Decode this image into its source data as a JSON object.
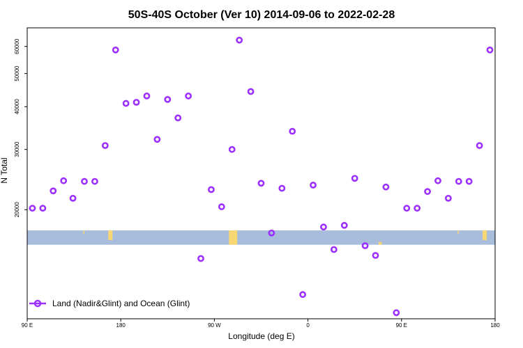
{
  "chart_data": {
    "type": "scatter",
    "title": "50S-40S October (Ver 10)   2014-09-06 to 2022-02-28",
    "xlabel": "Longitude (deg E)",
    "ylabel": "N Total",
    "x_ticks": [
      {
        "value": 90,
        "label": "90 E"
      },
      {
        "value": 180,
        "label": "180"
      },
      {
        "value": 270,
        "label": "90 W"
      },
      {
        "value": 360,
        "label": "0"
      },
      {
        "value": 450,
        "label": "90 E"
      },
      {
        "value": 540,
        "label": "180"
      }
    ],
    "y_ticks": [
      20000,
      30000,
      40000,
      50000,
      60000
    ],
    "xlim": [
      90,
      540
    ],
    "y_scale": "log",
    "ylim": [
      9600,
      68000
    ],
    "legend": {
      "position": "bottom-left",
      "label": "Land (Nadir&Glint) and Ocean (Glint)"
    },
    "colors": {
      "points": "#9b30ff",
      "ocean_band": "#a8bcdc",
      "land": "#f7d774",
      "legend_line": "#9b30ff"
    },
    "series": [
      {
        "name": "Land (Nadir&Glint) and Ocean (Glint)",
        "x": [
          95,
          105,
          115,
          125,
          134,
          145,
          155,
          165,
          175,
          185,
          195,
          205,
          215,
          225,
          235,
          245,
          257,
          267,
          277,
          287,
          294,
          305,
          315,
          325,
          335,
          345,
          355,
          365,
          375,
          385,
          395,
          405,
          415,
          425,
          435,
          445,
          455,
          465,
          475,
          485,
          495,
          505,
          515,
          525,
          535
        ],
        "y": [
          20200,
          20200,
          22700,
          24300,
          21600,
          24200,
          24200,
          30800,
          58600,
          40900,
          41200,
          43000,
          32100,
          42000,
          37100,
          43000,
          14400,
          22900,
          20400,
          30000,
          62600,
          44300,
          23900,
          17100,
          23100,
          33900,
          11300,
          23600,
          17800,
          15300,
          18000,
          24700,
          15700,
          14700,
          23300,
          10000,
          20200,
          20200,
          22600,
          24300,
          21600,
          24200,
          24200,
          30800,
          58600
        ]
      }
    ],
    "ocean_band_y": [
      15800,
      17400
    ],
    "land_patches": [
      {
        "x": [
          144,
          145
        ],
        "y": [
          17000,
          17400
        ]
      },
      {
        "x": [
          168,
          172
        ],
        "y": [
          16300,
          17400
        ]
      },
      {
        "x": [
          284,
          292
        ],
        "y": [
          15800,
          17400
        ]
      },
      {
        "x": [
          428,
          431
        ],
        "y": [
          15800,
          16100
        ]
      },
      {
        "x": [
          504,
          505
        ],
        "y": [
          17000,
          17400
        ]
      },
      {
        "x": [
          528,
          532
        ],
        "y": [
          16300,
          17400
        ]
      }
    ]
  }
}
